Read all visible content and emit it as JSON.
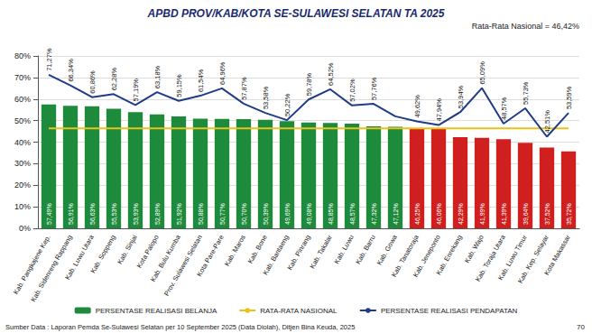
{
  "chart_data": {
    "type": "bar",
    "title": "APBD PROV/KAB/KOTA SE-SULAWESI SELATAN TA 2025",
    "annotations": [
      "Rata-Rata Nasional = 46,42%"
    ],
    "source": "Sumber Data : Laporan Pemda Se-Sulawesi Selatan per 10 September 2025 (Data Diolah), Ditjen Bina Keuda, 2025",
    "page_number": "70",
    "categories": [
      "Kab. Pangkajene Kep.",
      "Kab. Sidenreng Rappang",
      "Kab. Luwu Utara",
      "Kab. Soppeng",
      "Kab. Sinjai",
      "Kota Palopo",
      "Kab. Bulu Kumba",
      "Prov. Sulawesi Selatan",
      "Kota Pare-Pare",
      "Kab. Maros",
      "Kab. Bone",
      "Kab. Bantaeng",
      "Kab. Pinrang",
      "Kab. Takalar",
      "Kab. Luwu",
      "Kab. Barru",
      "Kab. Gowa",
      "Kab. Tanatoraja",
      "Kab. Jeneponto",
      "Kab. Enrekang",
      "Kab. Wajo",
      "Kab. Toraja Utara",
      "Kab. Luwu Timur",
      "Kab. Kep. Selayar",
      "Kota Makassar"
    ],
    "series": [
      {
        "name": "PERSENTASE REALISASI BELANJA",
        "type": "bar",
        "color": "#1e8a3c",
        "colors": [
          "#1e8a3c",
          "#1e8a3c",
          "#1e8a3c",
          "#1e8a3c",
          "#1e8a3c",
          "#1e8a3c",
          "#1e8a3c",
          "#1e8a3c",
          "#1e8a3c",
          "#1e8a3c",
          "#1e8a3c",
          "#1e8a3c",
          "#1e8a3c",
          "#1e8a3c",
          "#1e8a3c",
          "#1e8a3c",
          "#1e8a3c",
          "#d01f1f",
          "#d01f1f",
          "#d01f1f",
          "#d01f1f",
          "#d01f1f",
          "#d01f1f",
          "#d01f1f",
          "#d01f1f"
        ],
        "values": [
          57.49,
          56.91,
          56.63,
          55.53,
          53.93,
          52.89,
          51.92,
          50.88,
          50.77,
          50.7,
          50.39,
          49.69,
          49.08,
          48.85,
          48.57,
          47.32,
          47.12,
          46.25,
          46.06,
          42.29,
          41.99,
          41.39,
          39.64,
          37.52,
          35.72
        ],
        "value_labels": [
          "57,49%",
          "56,91%",
          "56,63%",
          "55,53%",
          "53,93%",
          "52,89%",
          "51,92%",
          "50,88%",
          "50,77%",
          "50,70%",
          "50,39%",
          "49,69%",
          "49,08%",
          "48,85%",
          "48,57%",
          "47,32%",
          "47,12%",
          "46,25%",
          "46,06%",
          "42,29%",
          "41,99%",
          "41,39%",
          "39,64%",
          "37,52%",
          "35,72%"
        ]
      },
      {
        "name": "RATA-RATA NASIONAL",
        "type": "line",
        "color": "#e8c21a",
        "values": [
          46.42,
          46.42,
          46.42,
          46.42,
          46.42,
          46.42,
          46.42,
          46.42,
          46.42,
          46.42,
          46.42,
          46.42,
          46.42,
          46.42,
          46.42,
          46.42,
          46.42,
          46.42,
          46.42,
          46.42,
          46.42,
          46.42,
          46.42,
          46.42,
          46.42
        ]
      },
      {
        "name": "PERSENTASE REALISASI PENDAPATAN",
        "type": "line",
        "color": "#1f3c88",
        "values": [
          71.27,
          66.34,
          60.86,
          62.28,
          57.19,
          63.18,
          59.15,
          61.54,
          64.96,
          57.87,
          53.58,
          50.22,
          59.78,
          64.52,
          57.02,
          57.76,
          52.0,
          49.62,
          47.94,
          53.94,
          65.09,
          48.57,
          55.73,
          42.51,
          53.59
        ],
        "value_labels": [
          "71,27%",
          "66,34%",
          "60,86%",
          "62,28%",
          "57,19%",
          "63,18%",
          "59,15%",
          "61,54%",
          "64,96%",
          "57,87%",
          "53,58%",
          "50,22%",
          "59,78%",
          "64,52%",
          "57,02%",
          "57,76%",
          null,
          "49,62%",
          "47,94%",
          "53,94%",
          "65,09%",
          "48,57%",
          "55,73%",
          "42,51%",
          "53,59%"
        ]
      }
    ],
    "ylim": [
      0,
      80
    ],
    "yticks": [
      {
        "value": 0,
        "label": "0%"
      },
      {
        "value": 10,
        "label": "10%"
      },
      {
        "value": 20,
        "label": "20%"
      },
      {
        "value": 30,
        "label": "30%"
      },
      {
        "value": 40,
        "label": "40%"
      },
      {
        "value": 50,
        "label": "50%"
      },
      {
        "value": 60,
        "label": "60%"
      },
      {
        "value": 70,
        "label": "70%"
      },
      {
        "value": 80,
        "label": "80%"
      }
    ],
    "grid": true,
    "legend": "bottom",
    "data_labels": true
  }
}
